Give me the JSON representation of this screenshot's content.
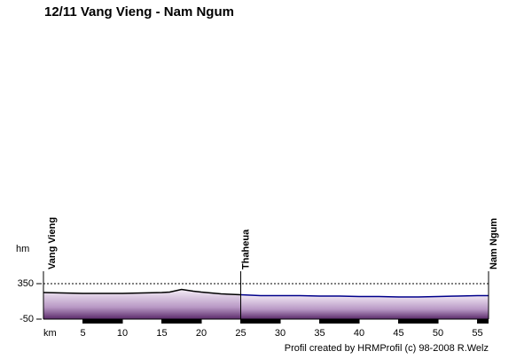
{
  "chart_data": {
    "type": "area",
    "title": "12/11 Vang Vieng - Nam Ngum",
    "y_label": "hm",
    "x_label": "km",
    "footer": "Profil created by HRMProfil (c) 98-2008 R.Welz",
    "x": [
      0,
      2.5,
      5,
      7.5,
      10,
      12.5,
      15,
      16,
      17.5,
      19,
      20,
      22.5,
      25,
      27.5,
      30,
      32.5,
      35,
      37.5,
      40,
      42.5,
      45,
      47.5,
      50,
      52.5,
      55,
      56.4
    ],
    "series": [
      {
        "color": "#000000",
        "values": [
          250,
          245,
          240,
          240,
          240,
          245,
          250,
          255,
          285,
          265,
          255,
          235,
          225,
          null,
          null,
          null,
          null,
          null,
          null,
          null,
          null,
          null,
          null,
          null,
          null,
          null
        ]
      },
      {
        "color": "#00008b",
        "values": [
          null,
          null,
          null,
          null,
          null,
          null,
          null,
          null,
          null,
          null,
          null,
          null,
          225,
          215,
          215,
          215,
          210,
          210,
          205,
          205,
          200,
          200,
          205,
          210,
          215,
          215
        ]
      }
    ],
    "annotations": [
      {
        "x": 0,
        "label": "Vang Vieng"
      },
      {
        "x": 25,
        "label": "Thaheua"
      },
      {
        "x": 56.4,
        "label": "Nam Ngum"
      }
    ],
    "xlim": [
      0,
      56.4
    ],
    "xticks": [
      5,
      10,
      15,
      20,
      25,
      30,
      35,
      40,
      45,
      50,
      55
    ],
    "ylim": [
      -50,
      350
    ],
    "yticks": [
      -50,
      350
    ]
  }
}
